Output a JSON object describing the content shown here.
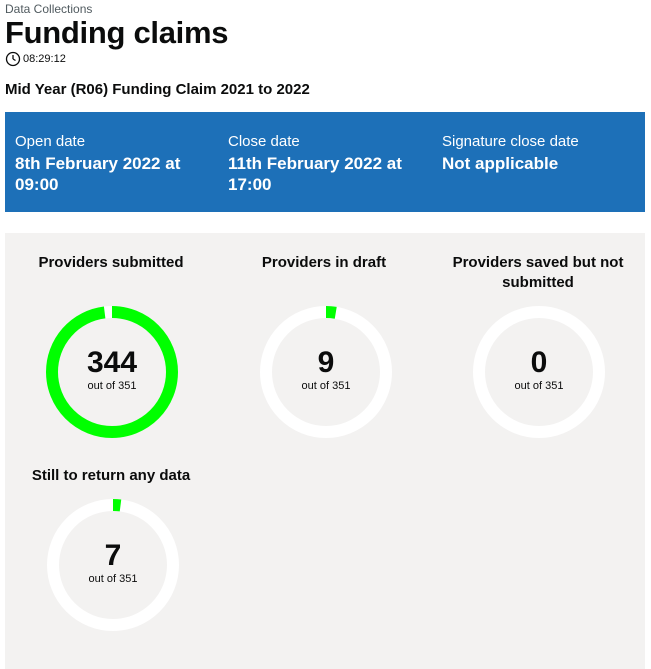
{
  "header": {
    "caption": "Data Collections",
    "title": "Funding claims",
    "time": "08:29:12",
    "subtitle": "Mid Year (R06) Funding Claim 2021 to 2022"
  },
  "dates": {
    "open_label": "Open date",
    "open_value": "8th February 2022 at 09:00",
    "close_label": "Close date",
    "close_value": "11th February 2022 at 17:00",
    "signature_label": "Signature close date",
    "signature_value": "Not applicable"
  },
  "stats": [
    {
      "label": "Providers submitted",
      "value": "344",
      "total_text": "out of 351",
      "fraction": 0.98
    },
    {
      "label": "Providers in draft",
      "value": "9",
      "total_text": "out of 351",
      "fraction": 0.026
    },
    {
      "label": "Providers saved but not submitted",
      "value": "0",
      "total_text": "out of 351",
      "fraction": 0
    },
    {
      "label": "Still to return any data",
      "value": "7",
      "total_text": "out of 351",
      "fraction": 0.02
    }
  ],
  "colors": {
    "banner": "#1d70b8",
    "panel": "#f3f2f1",
    "progress": "#00ff00",
    "track": "#ffffff"
  }
}
